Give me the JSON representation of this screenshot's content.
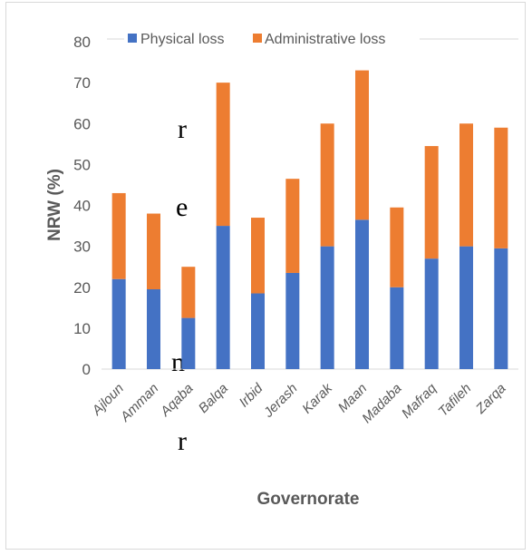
{
  "background_text": [
    "r",
    "e",
    "n",
    "r"
  ],
  "chart_data": {
    "type": "bar",
    "stacked": true,
    "xlabel": "Governorate",
    "ylabel": "NRW (%)",
    "ylim": [
      0,
      80
    ],
    "yticks": [
      0,
      10,
      20,
      30,
      40,
      50,
      60,
      70,
      80
    ],
    "grid": false,
    "legend_position": "top",
    "categories": [
      "Ajloun",
      "Amman",
      "Aqaba",
      "Balqa",
      "Irbid",
      "Jerash",
      "Karak",
      "Maan",
      "Madaba",
      "Mafraq",
      "Tafileh",
      "Zarqa"
    ],
    "series": [
      {
        "name": "Physical loss",
        "color": "#4472c4",
        "values": [
          22,
          19.5,
          12.5,
          35,
          18.5,
          23.5,
          30,
          36.5,
          20,
          27,
          30,
          29.5
        ]
      },
      {
        "name": "Administrative loss",
        "color": "#ed7d31",
        "values": [
          21,
          18.5,
          12.5,
          35,
          18.5,
          23,
          30,
          36.5,
          19.5,
          27.5,
          30,
          29.5
        ]
      }
    ]
  }
}
